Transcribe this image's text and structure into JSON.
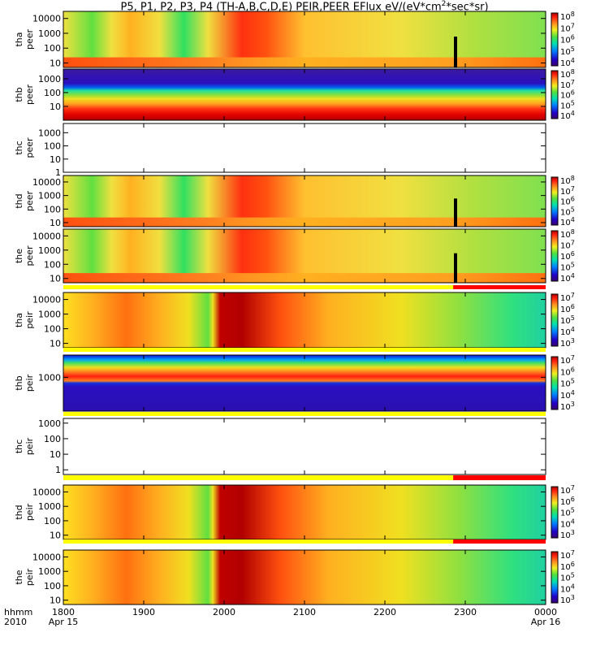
{
  "title": "P5, P1, P2, P3, P4 (TH-A,B,C,D,E) PEIR,PEER EFlux eV/(eV*cm2*sec*sr)",
  "title_parts": {
    "main": "P5, P1, P2, P3, P4 (TH-A,B,C,D,E) PEIR,PEER EFlux eV/(eV*cm",
    "sup": "2",
    "tail": "*sec*sr)"
  },
  "chart_data": {
    "type": "heatmap",
    "x_axis": {
      "range": [
        "2010-04-15 18:00",
        "2010-04-16 00:00"
      ],
      "label_lines": [
        "hhmm",
        "2010"
      ],
      "ticks": [
        "1800",
        "1900",
        "2000",
        "2100",
        "2200",
        "2300",
        "0000"
      ],
      "dates": [
        {
          "at": "1800",
          "text": "Apr 15"
        },
        {
          "at": "0000",
          "text": "Apr 16"
        }
      ]
    },
    "colormap": "rainbow (purple-blue-green-yellow-red)",
    "panels": [
      {
        "id": "tha_peer",
        "ylabel": [
          "tha",
          "peer"
        ],
        "yscale": "log",
        "ylim": [
          5,
          30000
        ],
        "yticks": [
          "10",
          "100",
          "1000",
          "10000"
        ],
        "zscale": "log",
        "zlim": [
          10000,
          100000000
        ],
        "zticks": [
          "10^4",
          "10^5",
          "10^6",
          "10^7",
          "10^8"
        ],
        "has_data": true,
        "variant": "thermal-electron",
        "top_bar": false
      },
      {
        "id": "thb_peer",
        "ylabel": [
          "thb",
          "peer"
        ],
        "yscale": "log",
        "ylim": [
          1,
          5000
        ],
        "yticks": [
          "10",
          "100",
          "1000"
        ],
        "zscale": "log",
        "zlim": [
          3000,
          100000000
        ],
        "zticks": [
          "10^4",
          "10^5",
          "10^6",
          "10^7",
          "10^8"
        ],
        "has_data": true,
        "variant": "banded-electron",
        "top_bar": false
      },
      {
        "id": "thc_peer",
        "ylabel": [
          "thc",
          "peer"
        ],
        "yscale": "log",
        "ylim": [
          1,
          5000
        ],
        "yticks": [
          "1",
          "10",
          "100",
          "1000"
        ],
        "has_data": false,
        "top_bar": false
      },
      {
        "id": "thd_peer",
        "ylabel": [
          "thd",
          "peer"
        ],
        "yscale": "log",
        "ylim": [
          5,
          30000
        ],
        "yticks": [
          "10",
          "100",
          "1000",
          "10000"
        ],
        "zscale": "log",
        "zlim": [
          10000,
          100000000
        ],
        "zticks": [
          "10^4",
          "10^5",
          "10^6",
          "10^7",
          "10^8"
        ],
        "has_data": true,
        "variant": "thermal-electron",
        "top_bar": false
      },
      {
        "id": "the_peer",
        "ylabel": [
          "the",
          "peer"
        ],
        "yscale": "log",
        "ylim": [
          5,
          30000
        ],
        "yticks": [
          "10",
          "100",
          "1000",
          "10000"
        ],
        "zscale": "log",
        "zlim": [
          3000,
          100000000
        ],
        "zticks": [
          "10^4",
          "10^5",
          "10^6",
          "10^7",
          "10^8"
        ],
        "has_data": true,
        "variant": "thermal-electron",
        "top_bar": false
      },
      {
        "id": "tha_peir",
        "ylabel": [
          "tha",
          "peir"
        ],
        "yscale": "log",
        "ylim": [
          5,
          30000
        ],
        "yticks": [
          "10",
          "100",
          "1000",
          "10000"
        ],
        "zscale": "log",
        "zlim": [
          300,
          30000000
        ],
        "zticks": [
          "10^3",
          "10^4",
          "10^5",
          "10^6",
          "10^7"
        ],
        "has_data": true,
        "variant": "ion",
        "top_bar": true,
        "top_bar_red_from": "2251"
      },
      {
        "id": "thb_peir",
        "ylabel": [
          "thb",
          "peir"
        ],
        "yscale": "log",
        "ylim": [
          30,
          10000
        ],
        "yticks": [
          "1000"
        ],
        "zscale": "log",
        "zlim": [
          300,
          30000000
        ],
        "zticks": [
          "10^3",
          "10^4",
          "10^5",
          "10^6",
          "10^7"
        ],
        "has_data": true,
        "variant": "banded-ion",
        "top_bar": true
      },
      {
        "id": "thc_peir",
        "ylabel": [
          "thc",
          "peir"
        ],
        "yscale": "log",
        "ylim": [
          0.5,
          2000
        ],
        "yticks": [
          "1",
          "10",
          "100",
          "1000"
        ],
        "has_data": false,
        "top_bar": true
      },
      {
        "id": "thd_peir",
        "ylabel": [
          "thd",
          "peir"
        ],
        "yscale": "log",
        "ylim": [
          5,
          30000
        ],
        "yticks": [
          "10",
          "100",
          "1000",
          "10000"
        ],
        "zscale": "log",
        "zlim": [
          300,
          30000000
        ],
        "zticks": [
          "10^3",
          "10^4",
          "10^5",
          "10^6",
          "10^7"
        ],
        "has_data": true,
        "variant": "ion",
        "top_bar": true,
        "top_bar_red_from": "2251"
      },
      {
        "id": "the_peir",
        "ylabel": [
          "the",
          "peir"
        ],
        "yscale": "log",
        "ylim": [
          5,
          30000
        ],
        "yticks": [
          "10",
          "100",
          "1000",
          "10000"
        ],
        "zscale": "log",
        "zlim": [
          300,
          30000000
        ],
        "zticks": [
          "10^3",
          "10^4",
          "10^5",
          "10^6",
          "10^7"
        ],
        "has_data": true,
        "variant": "ion",
        "top_bar": true,
        "top_bar_red_from": "2251"
      }
    ]
  }
}
